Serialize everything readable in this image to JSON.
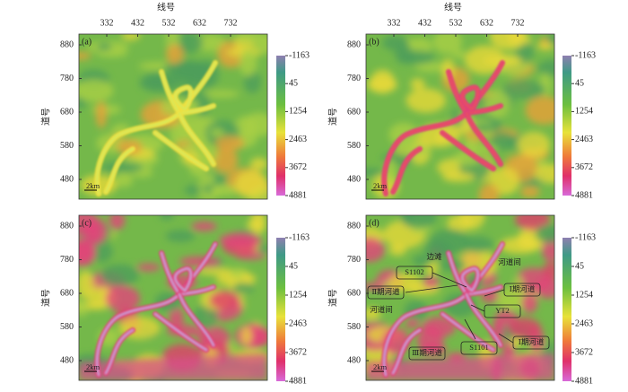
{
  "top_axis": {
    "label": "线号",
    "ticks": [
      "332",
      "432",
      "532",
      "632",
      "732"
    ]
  },
  "left_axis": {
    "label": "道号",
    "ticks": [
      "880",
      "780",
      "680",
      "580",
      "480"
    ]
  },
  "colorbar_ticks": [
    "-1163",
    "45",
    "1254",
    "2463",
    "3672",
    "4881"
  ],
  "scale_bar": "2km",
  "panels": [
    {
      "label": "(a)"
    },
    {
      "label": "(b)"
    },
    {
      "label": "(c)"
    },
    {
      "label": "(d)"
    }
  ],
  "annotations": [
    "边滩",
    "河道间",
    "S1102",
    "Ⅱ期河道",
    "Ⅰ期河道",
    "河道间",
    "YT2",
    "S1101",
    "Ⅰ期河道",
    "Ⅲ期河道"
  ]
}
